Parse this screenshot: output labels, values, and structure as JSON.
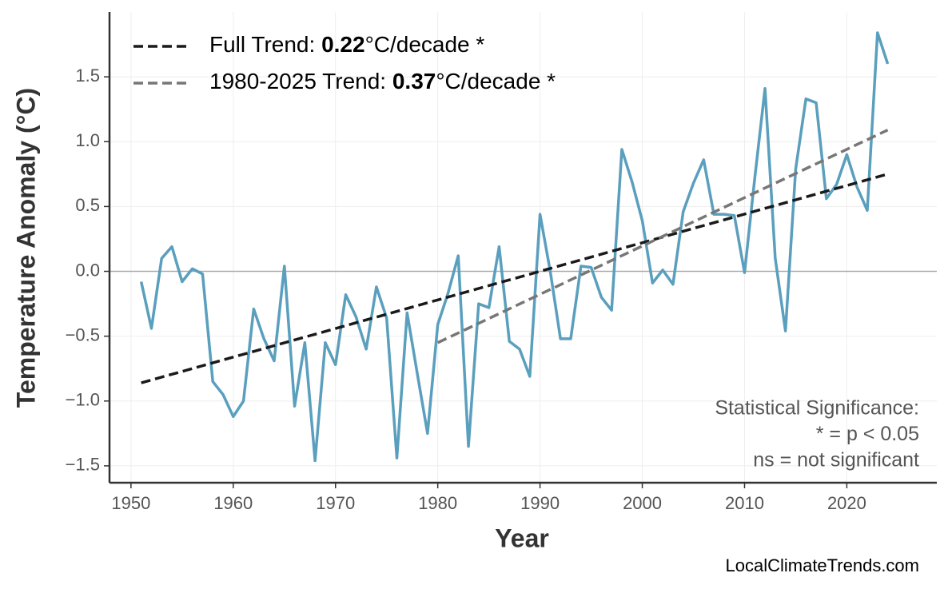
{
  "chart_data": {
    "type": "line",
    "y_label": "Temperature Anomaly (°C)",
    "x_label": "Year",
    "x": [
      1951,
      1952,
      1953,
      1954,
      1955,
      1956,
      1957,
      1958,
      1959,
      1960,
      1961,
      1962,
      1963,
      1964,
      1965,
      1966,
      1967,
      1968,
      1969,
      1970,
      1971,
      1972,
      1973,
      1974,
      1975,
      1976,
      1977,
      1978,
      1979,
      1980,
      1981,
      1982,
      1983,
      1984,
      1985,
      1986,
      1987,
      1988,
      1989,
      1990,
      1991,
      1992,
      1993,
      1994,
      1995,
      1996,
      1997,
      1998,
      1999,
      2000,
      2001,
      2002,
      2003,
      2004,
      2005,
      2006,
      2007,
      2008,
      2009,
      2010,
      2011,
      2012,
      2013,
      2014,
      2015,
      2016,
      2017,
      2018,
      2019,
      2020,
      2021,
      2022,
      2023,
      2024
    ],
    "series": [
      {
        "color": "#5a9fbd",
        "values": [
          -0.08,
          -0.44,
          0.1,
          0.19,
          -0.08,
          0.02,
          -0.02,
          -0.85,
          -0.95,
          -1.12,
          -1.0,
          -0.29,
          -0.52,
          -0.69,
          0.04,
          -1.04,
          -0.55,
          -1.46,
          -0.55,
          -0.72,
          -0.18,
          -0.35,
          -0.6,
          -0.12,
          -0.36,
          -1.44,
          -0.32,
          -0.79,
          -1.25,
          -0.41,
          -0.17,
          0.12,
          -1.35,
          -0.25,
          -0.28,
          0.19,
          -0.54,
          -0.6,
          -0.81,
          0.44,
          0.0,
          -0.52,
          -0.52,
          0.04,
          0.03,
          -0.2,
          -0.3,
          0.94,
          0.69,
          0.39,
          -0.09,
          0.01,
          -0.1,
          0.46,
          0.68,
          0.86,
          0.44,
          0.44,
          0.43,
          -0.01,
          0.72,
          1.41,
          0.1,
          -0.46,
          0.79,
          1.33,
          1.3,
          0.56,
          0.67,
          0.9,
          0.65,
          0.47,
          1.84,
          1.6
        ]
      }
    ],
    "trends": [
      {
        "name_parts": [
          "Full Trend: ",
          "0.22",
          "°C/decade *"
        ],
        "color": "#1a1a1a",
        "x": [
          1951,
          2024
        ],
        "values": [
          -0.86,
          0.75
        ]
      },
      {
        "name_parts": [
          "1980-2025 Trend: ",
          "0.37",
          "°C/decade *"
        ],
        "color": "#777777",
        "x": [
          1980,
          2024
        ],
        "values": [
          -0.55,
          1.09
        ]
      }
    ],
    "annotation": [
      "Statistical Significance:",
      "* = p < 0.05",
      "ns = not significant"
    ],
    "watermark": "LocalClimateTrends.com",
    "xlim": [
      1947.9,
      2028.8
    ],
    "ylim": [
      -1.63,
      2.0
    ],
    "xticks": [
      1950,
      1960,
      1970,
      1980,
      1990,
      2000,
      2010,
      2020
    ],
    "yticks": [
      {
        "value": -1.5,
        "label": "−1.5"
      },
      {
        "value": -1.0,
        "label": "−1.0"
      },
      {
        "value": -0.5,
        "label": "−0.5"
      },
      {
        "value": 0,
        "label": "0.0"
      },
      0.5,
      {
        "value": 1.0,
        "label": "1.0"
      },
      1.5
    ],
    "grid": true,
    "zero_line": true,
    "legend": "upper left"
  }
}
